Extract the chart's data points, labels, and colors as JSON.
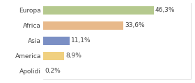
{
  "categories": [
    "Europa",
    "Africa",
    "Asia",
    "America",
    "Apolidi"
  ],
  "values": [
    46.3,
    33.6,
    11.1,
    8.9,
    0.2
  ],
  "labels": [
    "46,3%",
    "33,6%",
    "11,1%",
    "8,9%",
    "0,2%"
  ],
  "bar_colors": [
    "#b5c98e",
    "#e8b98a",
    "#7b8fc4",
    "#f0d080",
    "#d0d0d0"
  ],
  "background_color": "#ffffff",
  "text_color": "#444444",
  "label_fontsize": 6.5,
  "tick_fontsize": 6.5,
  "xlim": 62,
  "bar_height": 0.55
}
